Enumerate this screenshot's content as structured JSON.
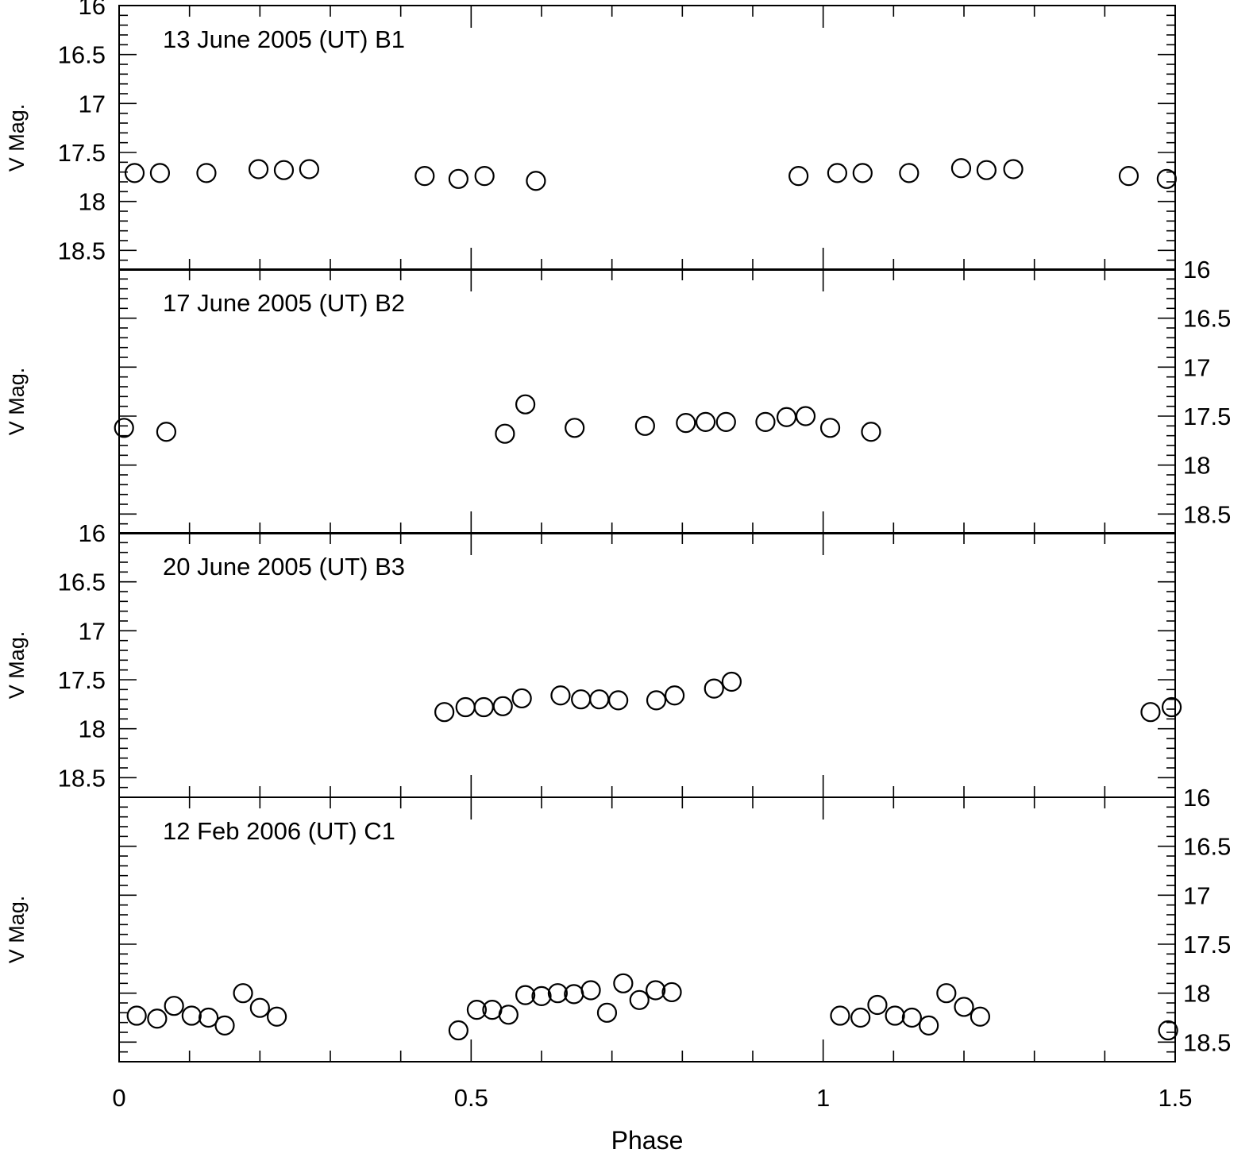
{
  "chart_data": {
    "type": "scatter",
    "xlabel": "Phase",
    "xlim": [
      0,
      1.5
    ],
    "x_ticks": [
      "0",
      "0.5",
      "1",
      "1.5"
    ],
    "ylim": [
      16,
      18.7
    ],
    "y_inverted": true,
    "y_ticks": [
      "16",
      "16.5",
      "17",
      "17.5",
      "18",
      "18.5"
    ],
    "marker": "open-circle",
    "color": "#000000",
    "panels": [
      {
        "title": "13 June 2005 (UT) B1",
        "ylabel": "V Mag.",
        "y_axis_side": "left",
        "points": [
          [
            0.022,
            17.71
          ],
          [
            0.058,
            17.71
          ],
          [
            0.124,
            17.71
          ],
          [
            0.198,
            17.67
          ],
          [
            0.234,
            17.68
          ],
          [
            0.27,
            17.67
          ],
          [
            0.434,
            17.74
          ],
          [
            0.482,
            17.77
          ],
          [
            0.519,
            17.74
          ],
          [
            0.592,
            17.79
          ],
          [
            0.965,
            17.74
          ],
          [
            1.02,
            17.71
          ],
          [
            1.056,
            17.71
          ],
          [
            1.122,
            17.71
          ],
          [
            1.196,
            17.66
          ],
          [
            1.232,
            17.68
          ],
          [
            1.27,
            17.67
          ],
          [
            1.434,
            17.74
          ],
          [
            1.488,
            17.77
          ]
        ]
      },
      {
        "title": "17 June 2005 (UT) B2",
        "ylabel": "V Mag.",
        "y_axis_side": "right",
        "points": [
          [
            0.007,
            17.62
          ],
          [
            0.067,
            17.66
          ],
          [
            0.548,
            17.68
          ],
          [
            0.577,
            17.38
          ],
          [
            0.647,
            17.62
          ],
          [
            0.747,
            17.6
          ],
          [
            0.805,
            17.57
          ],
          [
            0.833,
            17.56
          ],
          [
            0.862,
            17.56
          ],
          [
            0.918,
            17.56
          ],
          [
            0.948,
            17.51
          ],
          [
            0.975,
            17.5
          ],
          [
            1.01,
            17.62
          ],
          [
            1.068,
            17.66
          ]
        ]
      },
      {
        "title": "20 June 2005 (UT) B3",
        "ylabel": "V Mag.",
        "y_axis_side": "left",
        "points": [
          [
            0.462,
            17.83
          ],
          [
            0.492,
            17.78
          ],
          [
            0.518,
            17.78
          ],
          [
            0.545,
            17.77
          ],
          [
            0.572,
            17.69
          ],
          [
            0.627,
            17.66
          ],
          [
            0.656,
            17.7
          ],
          [
            0.682,
            17.7
          ],
          [
            0.709,
            17.71
          ],
          [
            0.763,
            17.71
          ],
          [
            0.789,
            17.66
          ],
          [
            0.845,
            17.59
          ],
          [
            0.87,
            17.52
          ],
          [
            1.465,
            17.83
          ],
          [
            1.495,
            17.78
          ]
        ]
      },
      {
        "title": "12 Feb 2006 (UT) C1",
        "ylabel": "V Mag.",
        "y_axis_side": "right",
        "points": [
          [
            0.025,
            18.23
          ],
          [
            0.054,
            18.26
          ],
          [
            0.078,
            18.13
          ],
          [
            0.103,
            18.23
          ],
          [
            0.127,
            18.25
          ],
          [
            0.15,
            18.33
          ],
          [
            0.176,
            18.0
          ],
          [
            0.2,
            18.15
          ],
          [
            0.224,
            18.24
          ],
          [
            0.482,
            18.38
          ],
          [
            0.508,
            18.17
          ],
          [
            0.53,
            18.17
          ],
          [
            0.553,
            18.22
          ],
          [
            0.577,
            18.02
          ],
          [
            0.6,
            18.03
          ],
          [
            0.623,
            18.0
          ],
          [
            0.646,
            18.01
          ],
          [
            0.67,
            17.97
          ],
          [
            0.693,
            18.2
          ],
          [
            0.716,
            17.9
          ],
          [
            0.739,
            18.07
          ],
          [
            0.762,
            17.97
          ],
          [
            0.785,
            17.99
          ],
          [
            1.024,
            18.23
          ],
          [
            1.053,
            18.25
          ],
          [
            1.077,
            18.12
          ],
          [
            1.102,
            18.23
          ],
          [
            1.126,
            18.25
          ],
          [
            1.15,
            18.33
          ],
          [
            1.175,
            18.0
          ],
          [
            1.2,
            18.14
          ],
          [
            1.223,
            18.24
          ],
          [
            1.49,
            18.38
          ]
        ]
      }
    ]
  }
}
